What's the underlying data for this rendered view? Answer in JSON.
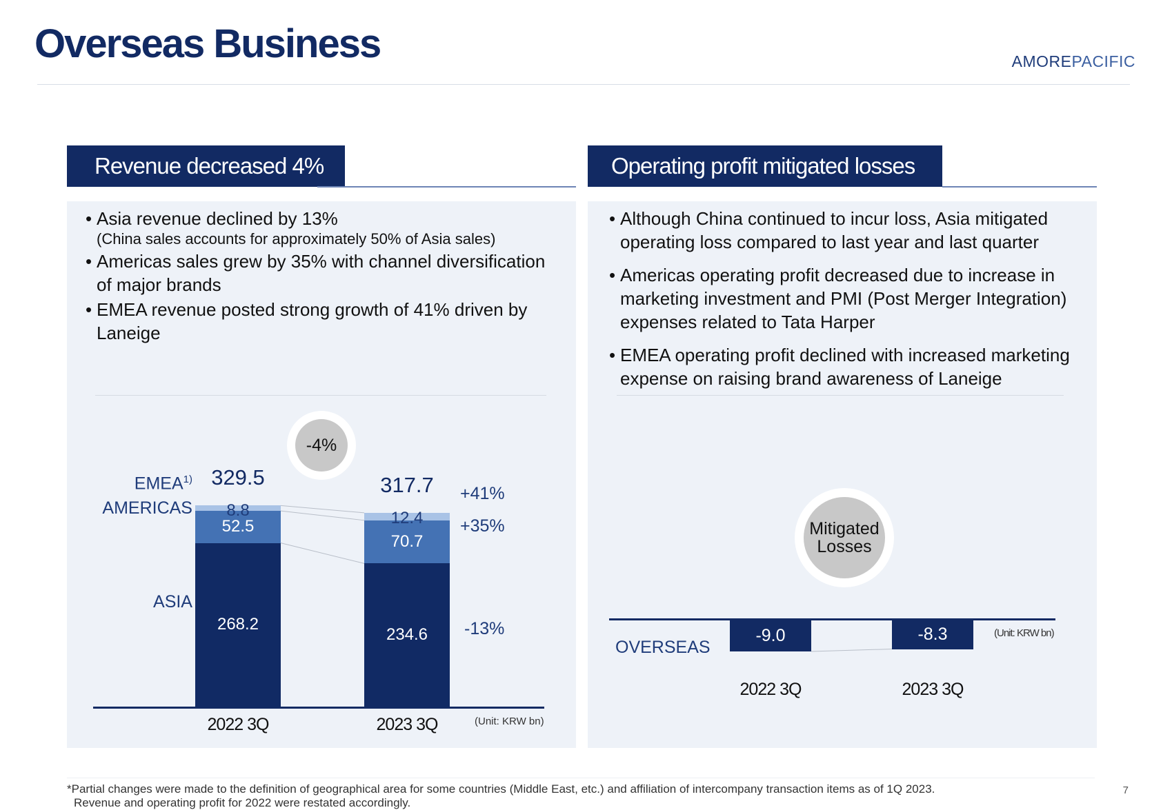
{
  "page": {
    "title": "Overseas Business",
    "brand_part1": "AMORE",
    "brand_part2": "PACIFIC",
    "page_number": "7",
    "footnote_line1": "*Partial changes were made to the definition of geographical area for some countries (Middle East, etc.) and affiliation of intercompany transaction items as of 1Q 2023.",
    "footnote_line2": "Revenue and operating profit for 2022 were restated accordingly."
  },
  "left_panel": {
    "header": "Revenue decreased 4%",
    "bullets": [
      {
        "text": "Asia revenue declined by 13%",
        "sub": "(China sales accounts for approximately 50% of Asia sales)"
      },
      {
        "text": "Americas sales grew by 35% with channel diversification of major brands"
      },
      {
        "text": "EMEA revenue posted strong growth of 41% driven by Laneige"
      }
    ],
    "change_badge": "-4%",
    "unit": "(Unit: KRW bn)"
  },
  "right_panel": {
    "header": "Operating profit mitigated losses",
    "bullets": [
      {
        "text": "Although China continued to incur loss, Asia mitigated operating loss compared to last year and last quarter"
      },
      {
        "text": "Americas operating profit decreased due to increase in marketing investment and PMI (Post Merger Integration) expenses related to Tata Harper"
      },
      {
        "text": "EMEA operating profit declined with increased marketing expense on raising brand awareness of Laneige"
      }
    ],
    "badge_line1": "Mitigated",
    "badge_line2": "Losses",
    "row_label": "OVERSEAS",
    "unit": "(Unit: KRW bn)"
  },
  "colors": {
    "navy": "#122a63",
    "asia": "#112a64",
    "americas": "#4472b4",
    "emea": "#a9c3e6",
    "panel_bg": "#eef2f8"
  },
  "chart_data": [
    {
      "type": "bar",
      "stacked": true,
      "categories": [
        "2022 3Q",
        "2023 3Q"
      ],
      "series": [
        {
          "name": "ASIA",
          "values": [
            268.2,
            234.6
          ],
          "change": "-13%"
        },
        {
          "name": "AMERICAS",
          "values": [
            52.5,
            70.7
          ],
          "change": "+35%"
        },
        {
          "name": "EMEA",
          "label_sup": "1)",
          "values": [
            8.8,
            12.4
          ],
          "change": "+41%"
        }
      ],
      "totals": [
        329.5,
        317.7
      ],
      "ylim": [
        0,
        340
      ]
    },
    {
      "type": "bar",
      "categories": [
        "2022 3Q",
        "2023 3Q"
      ],
      "series": [
        {
          "name": "OVERSEAS",
          "values": [
            -9.0,
            -8.3
          ]
        }
      ],
      "value_labels": [
        "-9.0",
        "-8.3"
      ]
    }
  ]
}
